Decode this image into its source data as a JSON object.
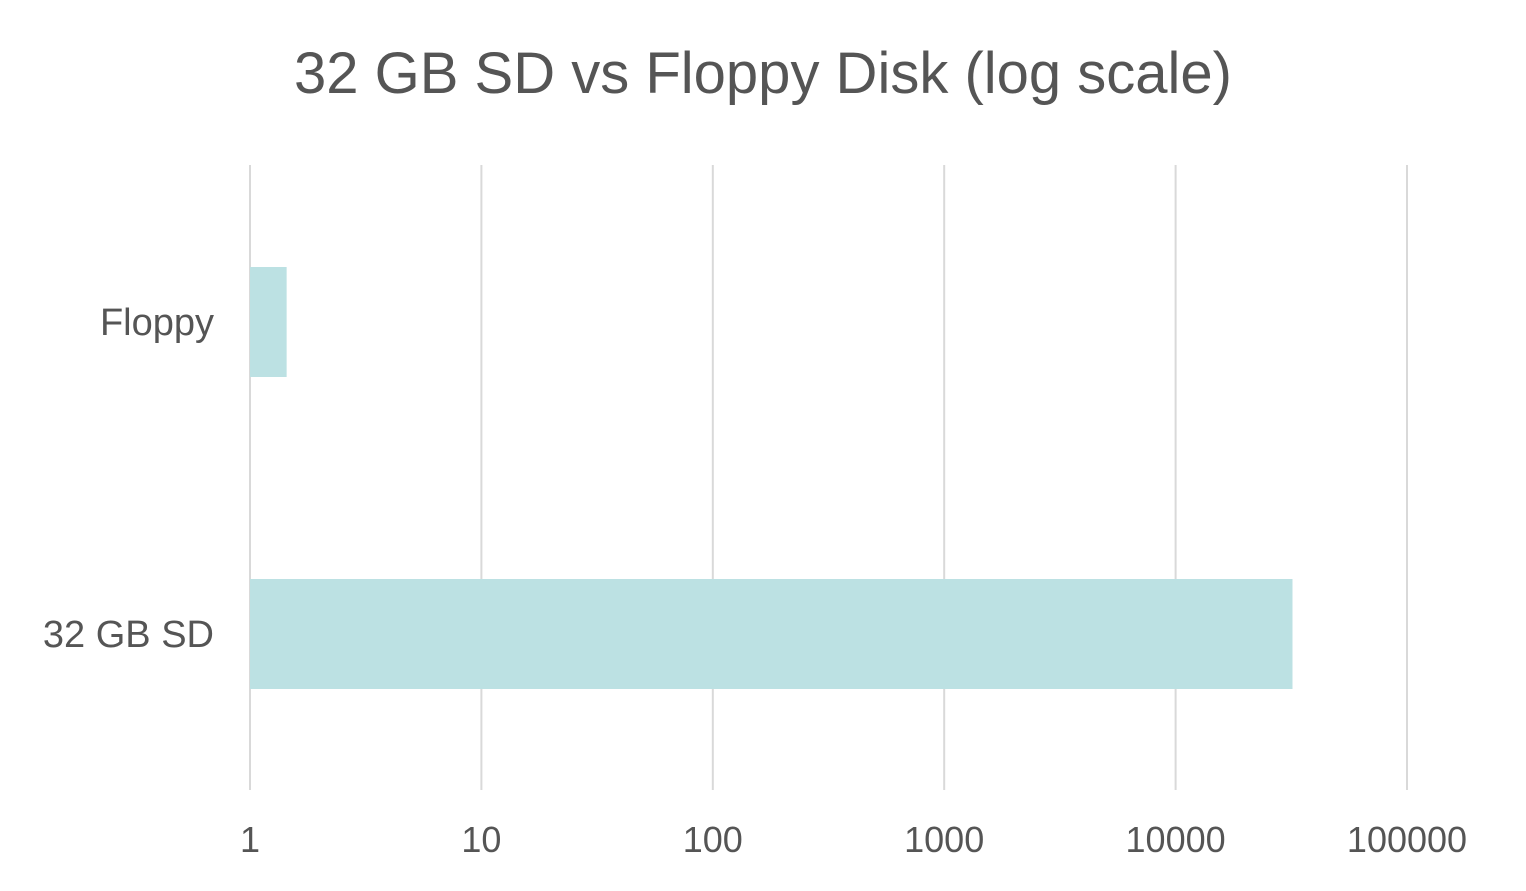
{
  "chart_data": {
    "type": "bar",
    "orientation": "horizontal",
    "title": "32 GB SD vs Floppy Disk (log scale)",
    "xlabel": "",
    "ylabel": "",
    "x_scale": "log",
    "xlim": [
      1,
      100000
    ],
    "x_ticks": [
      1,
      10,
      100,
      1000,
      10000,
      100000
    ],
    "x_tick_labels": [
      "1",
      "10",
      "100",
      "1000",
      "10000",
      "100000"
    ],
    "categories": [
      "Floppy",
      "32 GB SD"
    ],
    "values": [
      1.44,
      32000
    ],
    "bar_color": "#bce1e3",
    "grid_color": "#d9d9d9",
    "text_color": "#555555",
    "grid": true,
    "legend": "none"
  }
}
